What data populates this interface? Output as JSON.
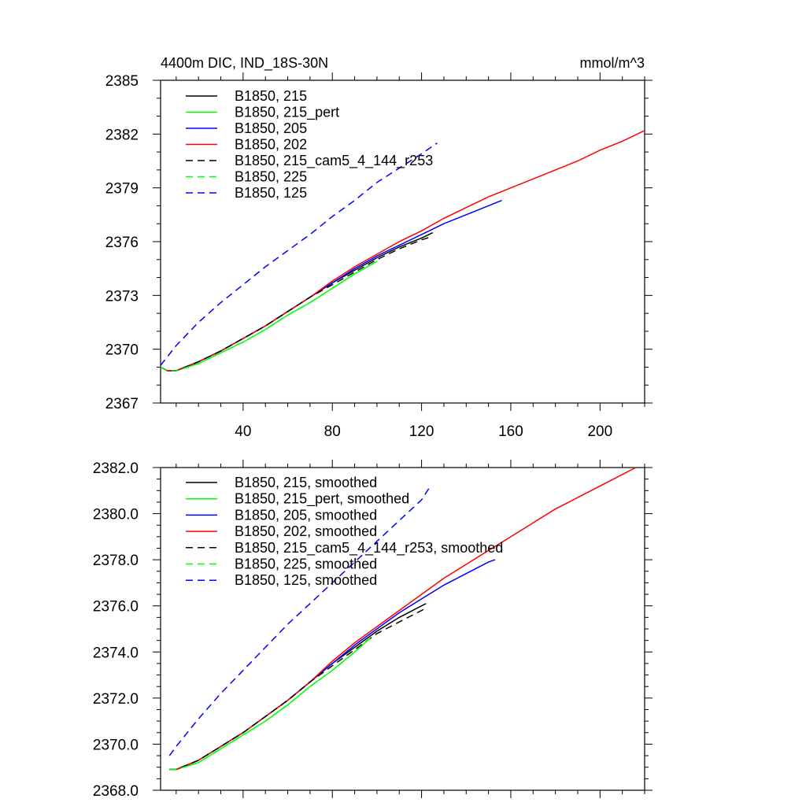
{
  "chart_data": [
    {
      "type": "line",
      "title": "4400m DIC, IND_18S-30N",
      "units": "mmol/m^3",
      "xlim": [
        3,
        220
      ],
      "ylim": [
        2367,
        2385
      ],
      "xticks": [
        40,
        80,
        120,
        160,
        200
      ],
      "yticks": [
        2367,
        2370,
        2373,
        2376,
        2379,
        2382,
        2385
      ],
      "ytick_labels": [
        "2367",
        "2370",
        "2373",
        "2376",
        "2379",
        "2382",
        "2385"
      ],
      "xtick_labels": [
        "40",
        "80",
        "120",
        "160",
        "200"
      ],
      "legend_position": "top-left",
      "grid": false,
      "series": [
        {
          "name": "B1850, 215",
          "color": "#000000",
          "dashed": false,
          "x": [
            3,
            6,
            10,
            20,
            30,
            40,
            50,
            60,
            70,
            80,
            90,
            100,
            110,
            120,
            125
          ],
          "y": [
            2369.0,
            2368.8,
            2368.8,
            2369.3,
            2369.9,
            2370.6,
            2371.3,
            2372.1,
            2372.9,
            2373.7,
            2374.4,
            2375.1,
            2375.7,
            2376.2,
            2376.5
          ]
        },
        {
          "name": "B1850, 215_pert",
          "color": "#00ff00",
          "dashed": false,
          "x": [
            3,
            6,
            10,
            20,
            30,
            40,
            50,
            60,
            70,
            80,
            90,
            100
          ],
          "y": [
            2369.0,
            2368.8,
            2368.8,
            2369.2,
            2369.8,
            2370.4,
            2371.1,
            2371.9,
            2372.6,
            2373.4,
            2374.2,
            2374.9
          ]
        },
        {
          "name": "B1850, 205",
          "color": "#0000ff",
          "dashed": false,
          "x": [
            3,
            6,
            10,
            20,
            30,
            40,
            50,
            60,
            70,
            80,
            90,
            100,
            110,
            120,
            130,
            140,
            150,
            156
          ],
          "y": [
            2369.0,
            2368.8,
            2368.8,
            2369.3,
            2369.9,
            2370.6,
            2371.3,
            2372.1,
            2372.9,
            2373.7,
            2374.5,
            2375.2,
            2375.8,
            2376.4,
            2377.0,
            2377.5,
            2378.0,
            2378.3
          ]
        },
        {
          "name": "B1850, 202",
          "color": "#ff0000",
          "dashed": false,
          "x": [
            3,
            6,
            10,
            20,
            30,
            40,
            50,
            60,
            70,
            80,
            90,
            100,
            110,
            120,
            130,
            140,
            150,
            160,
            170,
            180,
            190,
            200,
            210,
            220
          ],
          "y": [
            2369.0,
            2368.8,
            2368.8,
            2369.3,
            2369.9,
            2370.6,
            2371.3,
            2372.1,
            2372.9,
            2373.8,
            2374.6,
            2375.3,
            2376.0,
            2376.6,
            2377.3,
            2377.9,
            2378.5,
            2379.0,
            2379.5,
            2380.0,
            2380.5,
            2381.1,
            2381.6,
            2382.2
          ]
        },
        {
          "name": "B1850, 215_cam5_4_144_r253",
          "color": "#000000",
          "dashed": true,
          "x": [
            3,
            6,
            10,
            20,
            30,
            40,
            50,
            60,
            70,
            80,
            90,
            100,
            110,
            120,
            125
          ],
          "y": [
            2369.0,
            2368.8,
            2368.8,
            2369.3,
            2369.9,
            2370.6,
            2371.3,
            2372.1,
            2372.9,
            2373.6,
            2374.3,
            2375.0,
            2375.6,
            2376.1,
            2376.3
          ]
        },
        {
          "name": "B1850, 225",
          "color": "#00ff00",
          "dashed": true,
          "x": [
            3,
            6,
            10,
            20,
            30,
            40,
            50,
            60,
            70,
            80,
            90,
            100
          ],
          "y": [
            2369.0,
            2368.8,
            2368.8,
            2369.2,
            2369.8,
            2370.4,
            2371.1,
            2371.9,
            2372.6,
            2373.4,
            2374.2,
            2374.9
          ]
        },
        {
          "name": "B1850, 125",
          "color": "#0000ff",
          "dashed": true,
          "x": [
            3,
            10,
            20,
            30,
            40,
            50,
            60,
            70,
            80,
            90,
            100,
            110,
            120,
            127
          ],
          "y": [
            2369.1,
            2370.2,
            2371.5,
            2372.6,
            2373.6,
            2374.6,
            2375.5,
            2376.4,
            2377.4,
            2378.3,
            2379.3,
            2380.1,
            2380.9,
            2381.5
          ]
        }
      ]
    },
    {
      "type": "line",
      "title": "",
      "xlim": [
        3,
        220
      ],
      "ylim": [
        2368.0,
        2382.0
      ],
      "xticks": [
        40,
        80,
        120,
        160,
        200
      ],
      "yticks": [
        2368.0,
        2370.0,
        2372.0,
        2374.0,
        2376.0,
        2378.0,
        2380.0,
        2382.0
      ],
      "ytick_labels": [
        "2368.0",
        "2370.0",
        "2372.0",
        "2374.0",
        "2376.0",
        "2378.0",
        "2380.0",
        "2382.0"
      ],
      "legend_position": "top-left",
      "grid": false,
      "series": [
        {
          "name": "B1850, 215, smoothed",
          "color": "#000000",
          "dashed": false,
          "x": [
            7,
            10,
            20,
            30,
            40,
            50,
            60,
            70,
            80,
            90,
            100,
            110,
            120,
            122
          ],
          "y": [
            2368.9,
            2368.9,
            2369.3,
            2369.9,
            2370.5,
            2371.2,
            2371.9,
            2372.7,
            2373.5,
            2374.2,
            2374.9,
            2375.5,
            2376.0,
            2376.1
          ]
        },
        {
          "name": "B1850, 215_pert, smoothed",
          "color": "#00ff00",
          "dashed": false,
          "x": [
            7,
            10,
            20,
            30,
            40,
            50,
            60,
            70,
            80,
            90,
            97
          ],
          "y": [
            2368.9,
            2368.9,
            2369.2,
            2369.8,
            2370.4,
            2371.0,
            2371.7,
            2372.5,
            2373.2,
            2374.0,
            2374.6
          ]
        },
        {
          "name": "B1850, 205, smoothed",
          "color": "#0000ff",
          "dashed": false,
          "x": [
            7,
            10,
            20,
            30,
            40,
            50,
            60,
            70,
            80,
            90,
            100,
            110,
            120,
            130,
            140,
            150,
            153
          ],
          "y": [
            2368.9,
            2368.9,
            2369.3,
            2369.9,
            2370.5,
            2371.2,
            2371.9,
            2372.7,
            2373.5,
            2374.3,
            2375.0,
            2375.7,
            2376.3,
            2376.9,
            2377.4,
            2377.9,
            2378.0
          ]
        },
        {
          "name": "B1850, 202, smoothed",
          "color": "#ff0000",
          "dashed": false,
          "x": [
            7,
            10,
            20,
            30,
            40,
            50,
            60,
            70,
            80,
            90,
            100,
            110,
            120,
            130,
            140,
            150,
            160,
            170,
            180,
            190,
            200,
            210,
            216
          ],
          "y": [
            2368.9,
            2368.9,
            2369.3,
            2369.9,
            2370.5,
            2371.2,
            2371.9,
            2372.7,
            2373.6,
            2374.4,
            2375.1,
            2375.8,
            2376.5,
            2377.2,
            2377.8,
            2378.4,
            2379.0,
            2379.6,
            2380.2,
            2380.7,
            2381.2,
            2381.7,
            2382.0
          ]
        },
        {
          "name": "B1850, 215_cam5_4_144_r253, smoothed",
          "color": "#000000",
          "dashed": true,
          "x": [
            7,
            10,
            20,
            30,
            40,
            50,
            60,
            70,
            80,
            90,
            100,
            110,
            120,
            122
          ],
          "y": [
            2368.9,
            2368.9,
            2369.3,
            2369.9,
            2370.5,
            2371.2,
            2371.9,
            2372.7,
            2373.4,
            2374.1,
            2374.8,
            2375.3,
            2375.8,
            2375.9
          ]
        },
        {
          "name": "B1850, 225, smoothed",
          "color": "#00ff00",
          "dashed": true,
          "x": [
            7,
            10,
            20,
            30,
            40,
            50,
            60,
            70,
            80,
            90,
            97
          ],
          "y": [
            2368.9,
            2368.9,
            2369.2,
            2369.8,
            2370.4,
            2371.0,
            2371.7,
            2372.5,
            2373.2,
            2374.0,
            2374.6
          ]
        },
        {
          "name": "B1850, 125, smoothed",
          "color": "#0000ff",
          "dashed": true,
          "x": [
            7,
            10,
            20,
            30,
            40,
            50,
            60,
            70,
            80,
            90,
            100,
            110,
            120,
            124
          ],
          "y": [
            2369.5,
            2369.9,
            2371.1,
            2372.2,
            2373.2,
            2374.2,
            2375.2,
            2376.1,
            2377.0,
            2377.9,
            2378.8,
            2379.7,
            2380.6,
            2381.2
          ]
        }
      ]
    }
  ]
}
